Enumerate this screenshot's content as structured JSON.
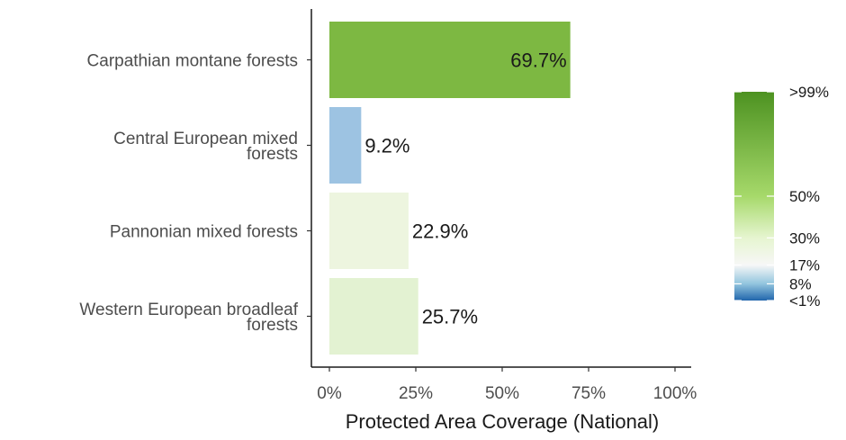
{
  "chart_data": {
    "type": "bar",
    "orientation": "horizontal",
    "categories": [
      "Carpathian montane forests",
      "Central European mixed forests",
      "Pannonian mixed forests",
      "Western European broadleaf forests"
    ],
    "category_lines": [
      [
        "Carpathian montane forests"
      ],
      [
        "Central European mixed",
        "forests"
      ],
      [
        "Pannonian mixed forests"
      ],
      [
        "Western European broadleaf",
        "forests"
      ]
    ],
    "values": [
      69.7,
      9.2,
      22.9,
      25.7
    ],
    "value_labels": [
      "69.7%",
      "9.2%",
      "22.9%",
      "25.7%"
    ],
    "bar_colors": [
      "#7db842",
      "#9dc3e2",
      "#edf5df",
      "#e3f2d2"
    ],
    "xlabel": "Protected Area Coverage (National)",
    "xlim": [
      0,
      100
    ],
    "xticks": [
      0,
      25,
      50,
      75,
      100
    ],
    "xtick_labels": [
      "0%",
      "25%",
      "50%",
      "75%",
      "100%"
    ],
    "grid": false,
    "legend": {
      "placement": "right",
      "type": "colorbar",
      "stops": [
        {
          "value": 0,
          "color": "#2166ac"
        },
        {
          "value": 8,
          "color": "#92c5de"
        },
        {
          "value": 17,
          "color": "#f7f7f7"
        },
        {
          "value": 30,
          "color": "#e6f5d0"
        },
        {
          "value": 50,
          "color": "#a6d96a"
        },
        {
          "value": 100,
          "color": "#4d9221"
        }
      ],
      "ticks": [
        {
          "value": 100,
          "label": ">99%"
        },
        {
          "value": 50,
          "label": "50%"
        },
        {
          "value": 30,
          "label": "30%"
        },
        {
          "value": 17,
          "label": "17%"
        },
        {
          "value": 8,
          "label": "8%"
        },
        {
          "value": 0,
          "label": "<1%"
        }
      ]
    }
  }
}
